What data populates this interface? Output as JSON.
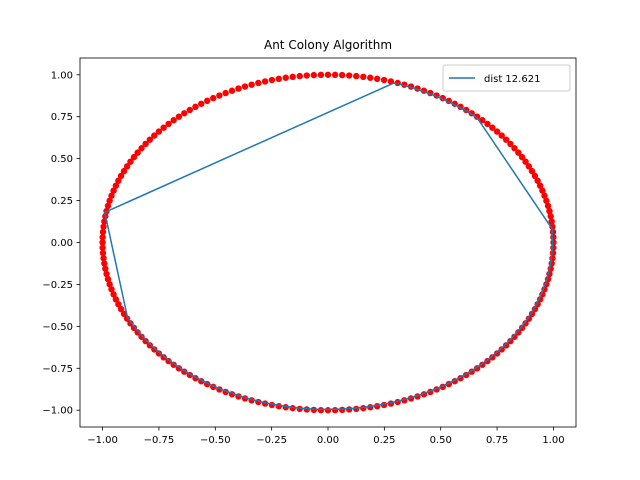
{
  "chart_data": {
    "type": "scatter",
    "title": "Ant Colony Algorithm",
    "xlabel": "",
    "ylabel": "",
    "xlim": [
      -1.1,
      1.1
    ],
    "ylim": [
      -1.1,
      1.1
    ],
    "xticks": [
      -1.0,
      -0.75,
      -0.5,
      -0.25,
      0.0,
      0.25,
      0.5,
      0.75,
      1.0
    ],
    "yticks": [
      -1.0,
      -0.75,
      -0.5,
      -0.25,
      0.0,
      0.25,
      0.5,
      0.75,
      1.0
    ],
    "xtick_labels": [
      "−1.00",
      "−0.75",
      "−0.50",
      "−0.25",
      "0.00",
      "0.25",
      "0.50",
      "0.75",
      "1.00"
    ],
    "ytick_labels": [
      "−1.00",
      "−0.75",
      "−0.50",
      "−0.25",
      "0.00",
      "0.25",
      "0.50",
      "0.75",
      "1.00"
    ],
    "grid": false,
    "legend": {
      "position": "top-right",
      "entries": [
        "dist 12.621"
      ]
    },
    "colors": {
      "points": "#ff0000",
      "route": "#1f77b4"
    },
    "points": {
      "shape": "unit-circle",
      "center": [
        0,
        0
      ],
      "radius": 1.0,
      "count": 200
    },
    "route": {
      "name": "dist 12.621",
      "x": [
        0.29,
        0.66,
        0.995,
        0.93,
        0.77,
        0.29,
        0.0,
        -0.56,
        -0.88,
        -0.99,
        0.29
      ],
      "y": [
        0.95,
        0.74,
        0.08,
        -0.31,
        -0.66,
        -0.96,
        -1.0,
        -0.83,
        -0.44,
        0.18,
        0.95
      ]
    }
  }
}
